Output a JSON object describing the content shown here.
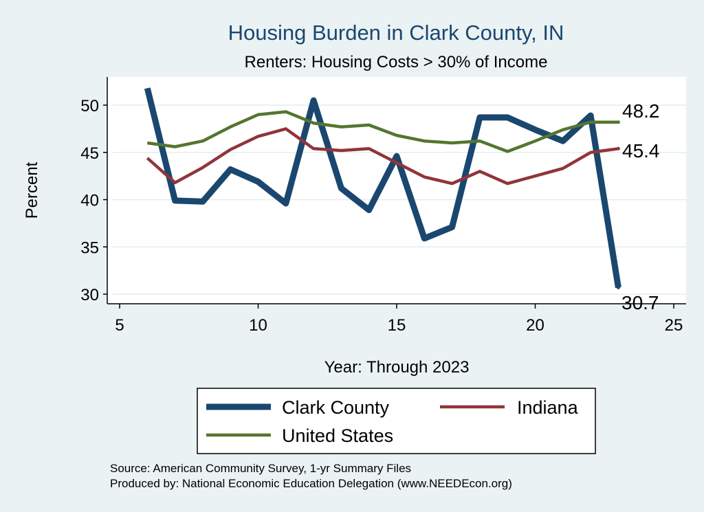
{
  "chart_data": {
    "type": "line",
    "title": "Housing Burden in Clark County, IN",
    "subtitle": "Renters: Housing Costs > 30% of Income",
    "xlabel": "Year: Through 2023",
    "ylabel": "Percent",
    "xlim": [
      5,
      25
    ],
    "ylim": [
      29.5,
      52.5
    ],
    "xticks": [
      5,
      10,
      15,
      20,
      25
    ],
    "yticks": [
      30,
      35,
      40,
      45,
      50
    ],
    "grid": true,
    "legend_position": "bottom",
    "x": [
      6,
      7,
      8,
      9,
      10,
      11,
      12,
      13,
      14,
      15,
      16,
      17,
      18,
      19,
      20,
      21,
      22,
      23
    ],
    "series": [
      {
        "name": "Clark County",
        "color": "#1a476f",
        "values": [
          51.8,
          39.9,
          39.8,
          43.2,
          41.9,
          39.6,
          50.5,
          41.2,
          38.9,
          44.6,
          35.9,
          37.1,
          48.7,
          48.7,
          47.4,
          46.2,
          48.9,
          30.7
        ],
        "end_label": "30.7"
      },
      {
        "name": "Indiana",
        "color": "#90353b",
        "values": [
          44.4,
          41.8,
          43.4,
          45.3,
          46.7,
          47.5,
          45.4,
          45.2,
          45.4,
          43.9,
          42.4,
          41.7,
          43.0,
          41.7,
          42.5,
          43.3,
          45.0,
          45.4
        ],
        "end_label": "45.4"
      },
      {
        "name": "United States",
        "color": "#55752f",
        "values": [
          46.0,
          45.6,
          46.2,
          47.7,
          49.0,
          49.3,
          48.1,
          47.7,
          47.9,
          46.8,
          46.2,
          46.0,
          46.2,
          45.1,
          46.2,
          47.4,
          48.2,
          48.2
        ],
        "end_label": "48.2"
      }
    ],
    "notes": [
      "Source: American Community Survey, 1-yr Summary Files",
      "Produced by: National Economic Education Delegation (www.NEEDEcon.org)"
    ]
  }
}
